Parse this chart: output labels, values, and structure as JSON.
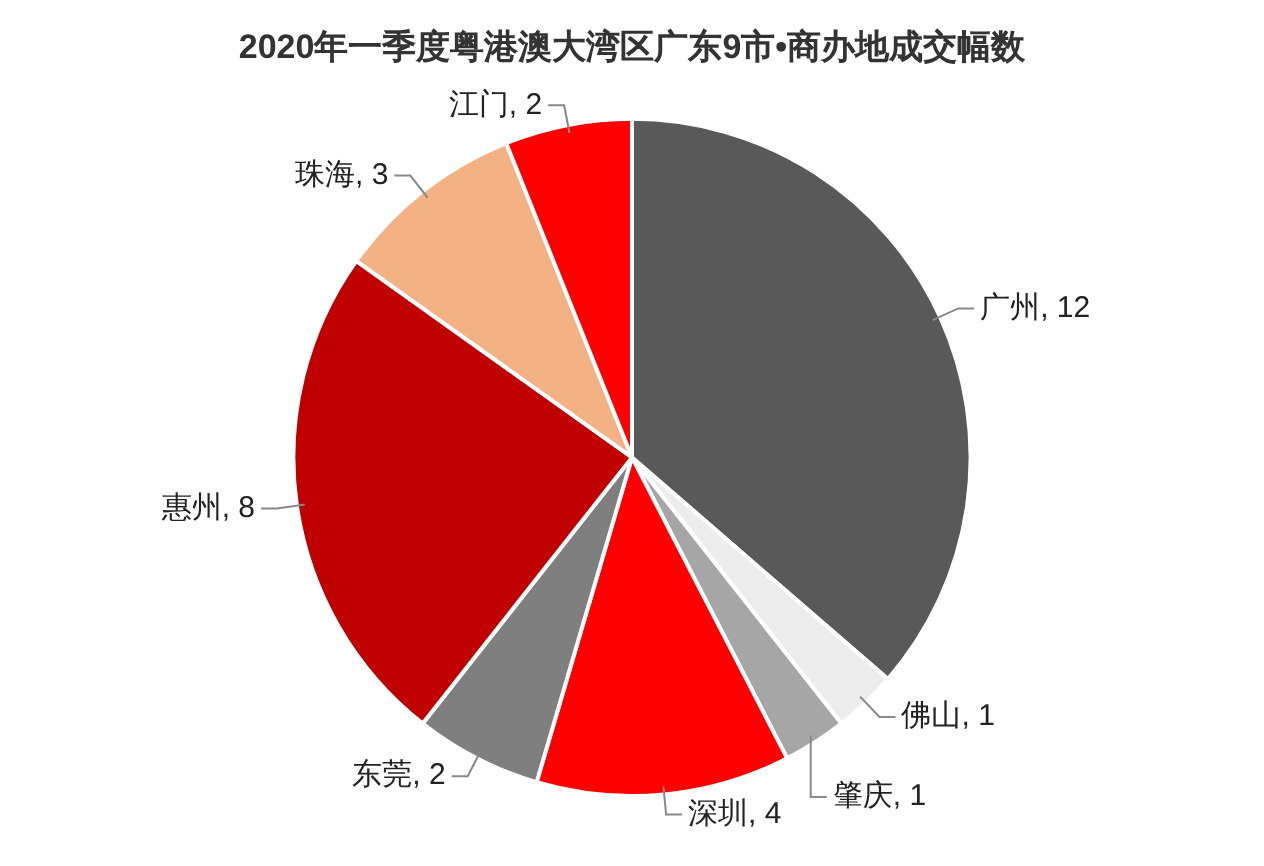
{
  "chart_data": {
    "type": "pie",
    "title": "2020年一季度粤港澳大湾区广东9市•商办地成交幅数",
    "categories": [
      "广州",
      "佛山",
      "肇庆",
      "深圳",
      "东莞",
      "惠州",
      "珠海",
      "江门"
    ],
    "values": [
      12,
      1,
      1,
      4,
      2,
      8,
      3,
      2
    ],
    "colors": [
      "#595959",
      "#ececec",
      "#a6a6a6",
      "#ff0000",
      "#7f7f7f",
      "#c00000",
      "#f4b183",
      "#ff0000"
    ],
    "value_labels": [
      ", 12",
      ", 1",
      ", 1",
      ", 4",
      ", 2",
      ", 8",
      ", 3",
      ", 2"
    ],
    "legend": false
  }
}
